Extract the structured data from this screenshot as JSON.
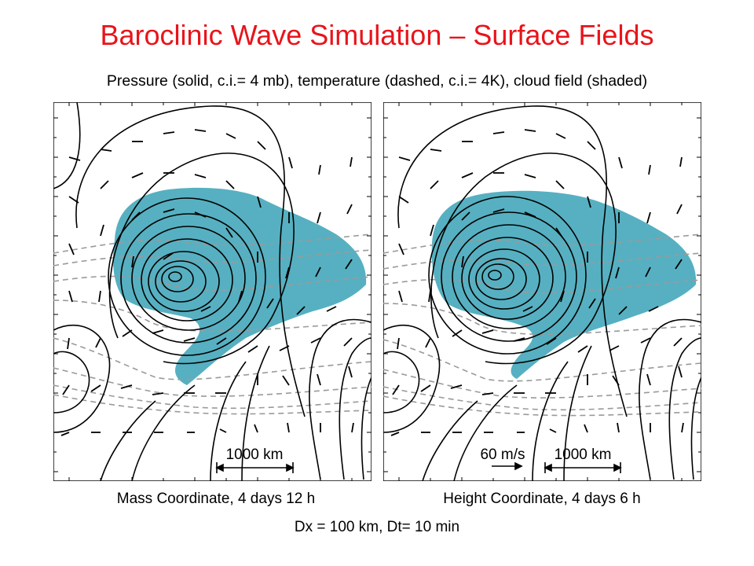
{
  "title": "Baroclinic Wave Simulation – Surface Fields",
  "subtitle": "Pressure (solid, c.i.= 4 mb), temperature (dashed, c.i.= 4K), cloud field (shaded)",
  "panels": [
    {
      "caption": "Mass Coordinate, 4 days 12 h",
      "scale_label": "1000 km"
    },
    {
      "caption": "Height Coordinate, 4 days 6 h",
      "scale_label": "1000 km",
      "vector_label": "60 m/s"
    }
  ],
  "footer": "Dx = 100 km, Dt= 10 min",
  "colors": {
    "title": "#e8141a",
    "cloud": "#56b0c1",
    "pressure": "#000000",
    "temperature": "#9a9a9a"
  }
}
